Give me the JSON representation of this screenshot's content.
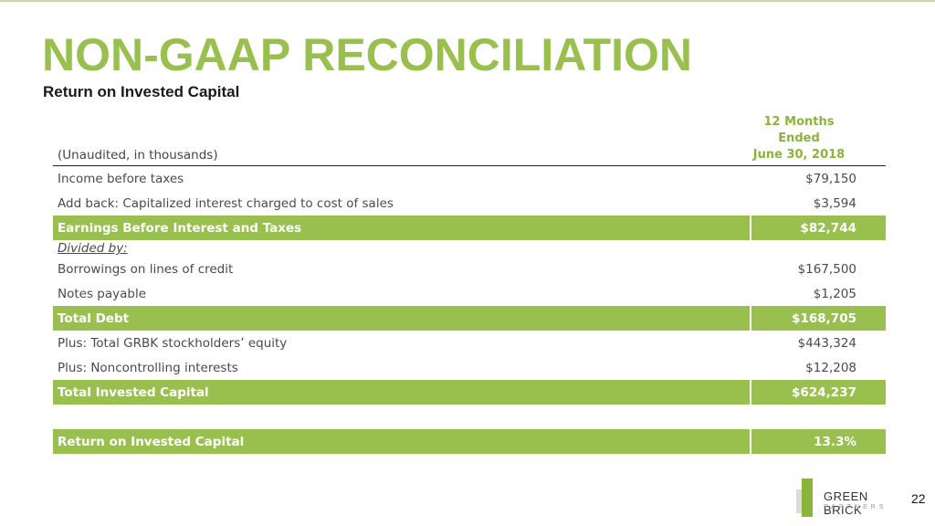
{
  "title": "NON-GAAP RECONCILIATION",
  "subtitle": "Return on Invested Capital",
  "table": {
    "header_left": "(Unaudited, in thousands)",
    "header_right_line1": "12 Months",
    "header_right_line2": "Ended",
    "header_right_line3": "June 30, 2018",
    "rows": [
      {
        "label": "Income before taxes",
        "value": "$79,150"
      },
      {
        "label": "Add back: Capitalized interest charged to cost of sales",
        "value": "$3,594"
      },
      {
        "label": "Earnings Before Interest and Taxes",
        "value": "$82,744"
      },
      {
        "label": "Divided by:",
        "value": ""
      },
      {
        "label": "Borrowings on lines of credit",
        "value": "$167,500"
      },
      {
        "label": "Notes payable",
        "value": "$1,205"
      },
      {
        "label": "Total Debt",
        "value": "$168,705"
      },
      {
        "label": "Plus: Total GRBK stockholders’ equity",
        "value": "$443,324"
      },
      {
        "label": "Plus: Noncontrolling interests",
        "value": "$12,208"
      },
      {
        "label": "Total Invested Capital",
        "value": "$624,237"
      },
      {
        "label": "Return on Invested Capital",
        "value": "13.3%"
      }
    ]
  },
  "logo": {
    "name": "GREEN BRICK",
    "sub": "PARTNERS"
  },
  "page_number": "22",
  "colors": {
    "accent": "#99c04e",
    "header_accent": "#8bb43c"
  }
}
